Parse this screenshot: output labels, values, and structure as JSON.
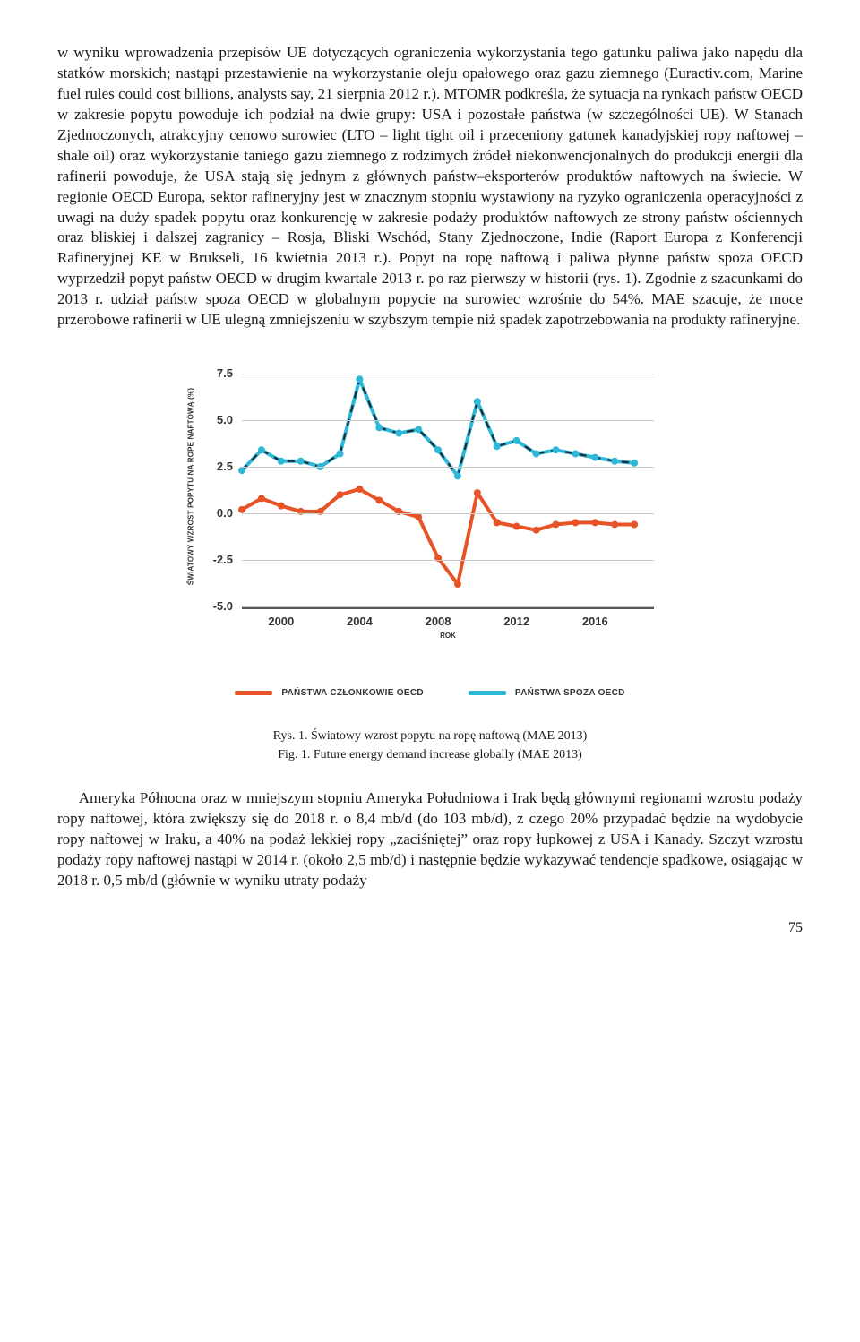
{
  "paragraphs": {
    "p1": "w wyniku wprowadzenia przepisów UE dotyczących ograniczenia wykorzystania tego gatunku paliwa jako napędu dla statków morskich; nastąpi przestawienie na wykorzystanie oleju opałowego oraz gazu ziemnego (Euractiv.com, Marine fuel rules could cost billions, analysts say, 21 sierpnia 2012 r.). MTOMR podkreśla, że sytuacja na rynkach państw OECD w zakresie popytu powoduje ich podział na dwie grupy: USA i pozostałe państwa (w szczególności UE). W Stanach Zjednoczonych, atrakcyjny cenowo surowiec (LTO – light tight oil i przeceniony gatunek kanadyjskiej ropy naftowej – shale oil) oraz wykorzystanie taniego gazu ziemnego z rodzimych źródeł niekonwencjonalnych do produkcji energii dla rafinerii powoduje, że USA stają się jednym z głównych państw–eksporterów produktów naftowych na świecie. W regionie OECD Europa, sektor rafineryjny jest w znacznym stopniu wystawiony na ryzyko ograniczenia operacyjności z uwagi na duży spadek popytu oraz konkurencję w zakresie podaży produktów naftowych ze strony państw ościennych oraz bliskiej i dalszej zagranicy – Rosja, Bliski Wschód, Stany Zjednoczone, Indie (Raport Europa z Konferencji Rafineryjnej KE w Brukseli, 16 kwietnia 2013 r.). Popyt na ropę naftową i paliwa płynne państw spoza OECD wyprzedził popyt państw OECD w drugim kwartale 2013 r. po raz pierwszy w historii (rys. 1). Zgodnie z szacunkami do 2013 r. udział państw spoza OECD w globalnym popycie na surowiec wzrośnie do 54%. MAE szacuje, że moce przerobowe rafinerii w UE ulegną zmniejszeniu w szybszym tempie niż spadek zapotrzebowania na produkty rafineryjne.",
    "p2": "Ameryka Północna oraz w mniejszym stopniu Ameryka Południowa i Irak będą głównymi regionami wzrostu podaży ropy naftowej, która zwiększy się do 2018 r. o 8,4 mb/d (do 103 mb/d), z czego 20% przypadać będzie na wydobycie ropy naftowej w Iraku, a 40% na podaż lekkiej ropy „zaciśniętej” oraz ropy łupkowej z USA i Kanady. Szczyt wzrostu podaży ropy naftowej nastąpi w 2014 r. (około 2,5 mb/d) i następnie będzie wykazywać tendencje spadkowe, osiągając w 2018 r. 0,5 mb/d (głównie w wyniku utraty podaży"
  },
  "figure": {
    "caption_pl": "Rys. 1. Światowy wzrost popytu na ropę naftową (MAE 2013)",
    "caption_en": "Fig. 1. Future energy demand increase globally (MAE 2013)",
    "ylabel": "ŚWIATOWY WZROST POPYTU NA ROPĘ NAFTOWĄ (%)",
    "xlabel": "ROK",
    "ylim": [
      -5.0,
      7.5
    ],
    "yticks": [
      "7.5",
      "5.0",
      "2.5",
      "0.0",
      "-2.5",
      "-5.0"
    ],
    "xticks": [
      "2000",
      "2004",
      "2008",
      "2012",
      "2016"
    ],
    "xlim": [
      1998,
      2019
    ],
    "grid_color": "#c8c8c8",
    "axis_color": "#555555",
    "background": "#ffffff",
    "series": [
      {
        "name": "PAŃSTWA CZŁONKOWIE OECD",
        "color": "#e75327",
        "years": [
          1998,
          1999,
          2000,
          2001,
          2002,
          2003,
          2004,
          2005,
          2006,
          2007,
          2008,
          2009,
          2010,
          2011,
          2012,
          2013,
          2014,
          2015,
          2016,
          2017,
          2018
        ],
        "values": [
          0.2,
          0.8,
          0.4,
          0.1,
          0.1,
          1.0,
          1.3,
          0.7,
          0.1,
          -0.2,
          -2.4,
          -3.8,
          1.1,
          -0.5,
          -0.7,
          -0.9,
          -0.6,
          -0.5,
          -0.5,
          -0.6,
          -0.6
        ]
      },
      {
        "name": "PAŃSTWA SPOZA OECD",
        "color": "#2cb8d6",
        "dash_overlay": "#1b2b3a",
        "years": [
          1998,
          1999,
          2000,
          2001,
          2002,
          2003,
          2004,
          2005,
          2006,
          2007,
          2008,
          2009,
          2010,
          2011,
          2012,
          2013,
          2014,
          2015,
          2016,
          2017,
          2018
        ],
        "values": [
          2.3,
          3.4,
          2.8,
          2.8,
          2.5,
          3.2,
          7.2,
          4.6,
          4.3,
          4.5,
          3.4,
          2.0,
          6.0,
          3.6,
          3.9,
          3.2,
          3.4,
          3.2,
          3.0,
          2.8,
          2.7
        ]
      }
    ],
    "legend": [
      {
        "label": "PAŃSTWA CZŁONKOWIE OECD",
        "color": "#e75327"
      },
      {
        "label": "PAŃSTWA SPOZA OECD",
        "color": "#2cb8d6"
      }
    ],
    "line_width": 4,
    "marker_radius": 4
  },
  "page_number": "75"
}
